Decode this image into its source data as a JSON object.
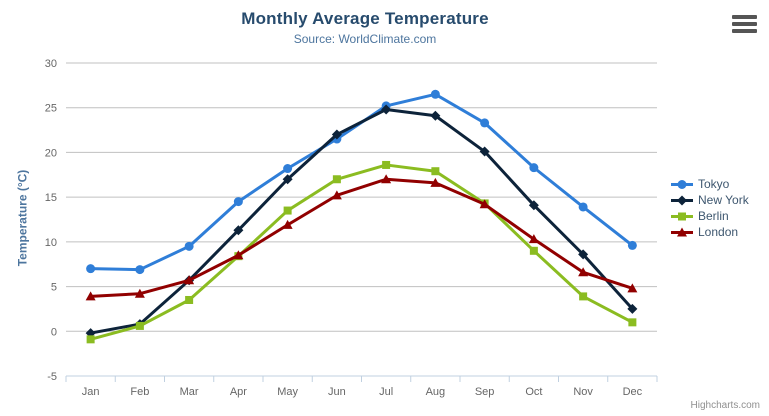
{
  "chart_data": {
    "type": "line",
    "title": "Monthly Average Temperature",
    "subtitle": "Source: WorldClimate.com",
    "categories": [
      "Jan",
      "Feb",
      "Mar",
      "Apr",
      "May",
      "Jun",
      "Jul",
      "Aug",
      "Sep",
      "Oct",
      "Nov",
      "Dec"
    ],
    "series": [
      {
        "name": "Tokyo",
        "color": "#2f7ed8",
        "marker": "circle",
        "values": [
          7.0,
          6.9,
          9.5,
          14.5,
          18.2,
          21.5,
          25.2,
          26.5,
          23.3,
          18.3,
          13.9,
          9.6
        ]
      },
      {
        "name": "New York",
        "color": "#0d233a",
        "marker": "diamond",
        "values": [
          -0.2,
          0.8,
          5.7,
          11.3,
          17.0,
          22.0,
          24.8,
          24.1,
          20.1,
          14.1,
          8.6,
          2.5
        ]
      },
      {
        "name": "Berlin",
        "color": "#8bbc21",
        "marker": "square",
        "values": [
          -0.9,
          0.6,
          3.5,
          8.4,
          13.5,
          17.0,
          18.6,
          17.9,
          14.3,
          9.0,
          3.9,
          1.0
        ]
      },
      {
        "name": "London",
        "color": "#910000",
        "marker": "triangle",
        "values": [
          3.9,
          4.2,
          5.7,
          8.5,
          11.9,
          15.2,
          17.0,
          16.6,
          14.2,
          10.3,
          6.6,
          4.8
        ]
      }
    ],
    "xlabel": "",
    "ylabel": "Temperature (°C)",
    "ylim": [
      -5,
      30
    ],
    "ytick_interval": 5,
    "grid": true,
    "legend_position": "right"
  },
  "theme": {
    "background": "#ffffff",
    "title_color": "#274b6d",
    "subtitle_color": "#4d759e",
    "axis_title_color": "#4d759e",
    "label_color": "#666666",
    "grid_color": "#c0c0c0",
    "axis_line_color": "#c0d0e0",
    "legend_text_color": "#3e576f",
    "credits_color": "#909090",
    "burger_color": "#555555"
  },
  "export_menu": {
    "icon": "hamburger-icon"
  },
  "credits": {
    "label": "Highcharts.com"
  }
}
